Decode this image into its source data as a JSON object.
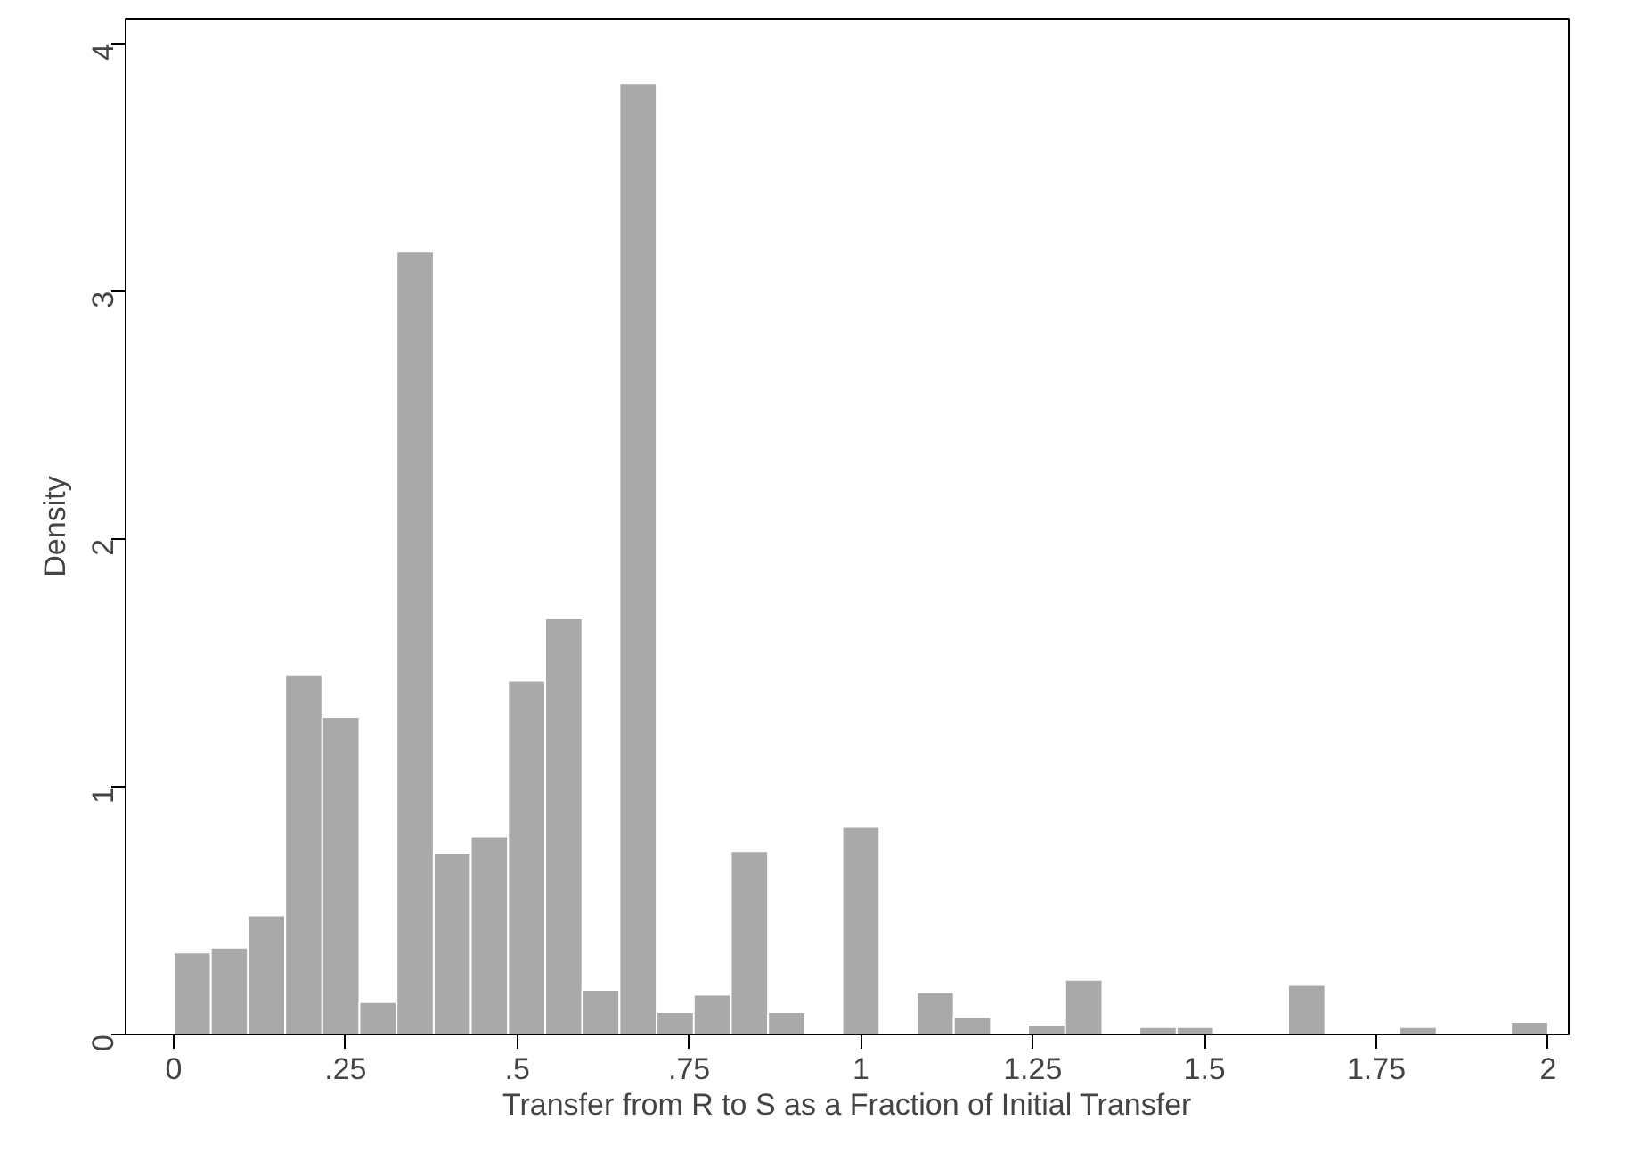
{
  "chart_data": {
    "type": "histogram",
    "xlabel": "Transfer from R to S as a Fraction of Initial Transfer",
    "ylabel": "Density",
    "bins": [
      0,
      0.05405,
      0.10811,
      0.16216,
      0.21622,
      0.27027,
      0.32432,
      0.37838,
      0.43243,
      0.48649,
      0.54054,
      0.59459,
      0.64865,
      0.7027,
      0.75676,
      0.81081,
      0.86486,
      0.91892,
      0.97297,
      1.02703,
      1.08108,
      1.13514,
      1.18919,
      1.24324,
      1.2973,
      1.35135,
      1.40541,
      1.45946,
      1.51351,
      1.56757,
      1.62162,
      1.67568,
      1.72973,
      1.78378,
      1.83784,
      1.89189,
      1.94595,
      2
    ],
    "values": [
      0.33,
      0.35,
      0.48,
      1.45,
      1.28,
      0.13,
      3.16,
      0.73,
      0.8,
      1.43,
      1.68,
      0.18,
      3.84,
      0.09,
      0.16,
      0.74,
      0.09,
      0,
      0.84,
      0,
      0.17,
      0.07,
      0,
      0.04,
      0.22,
      0,
      0.03,
      0.03,
      0,
      0,
      0.2,
      0,
      0,
      0.03,
      0,
      0,
      0.05
    ],
    "color": "#a9a9a9",
    "xlim": [
      -0.07,
      2.03
    ],
    "ylim": [
      0,
      4.1
    ],
    "xticks": [
      0,
      {
        "value": 0.25,
        "label": ".25"
      },
      {
        "value": 0.5,
        "label": ".5"
      },
      {
        "value": 0.75,
        "label": ".75"
      },
      1,
      1.25,
      1.5,
      1.75,
      2
    ],
    "yticks": [
      0,
      1,
      2,
      3,
      4
    ],
    "grid": false
  }
}
